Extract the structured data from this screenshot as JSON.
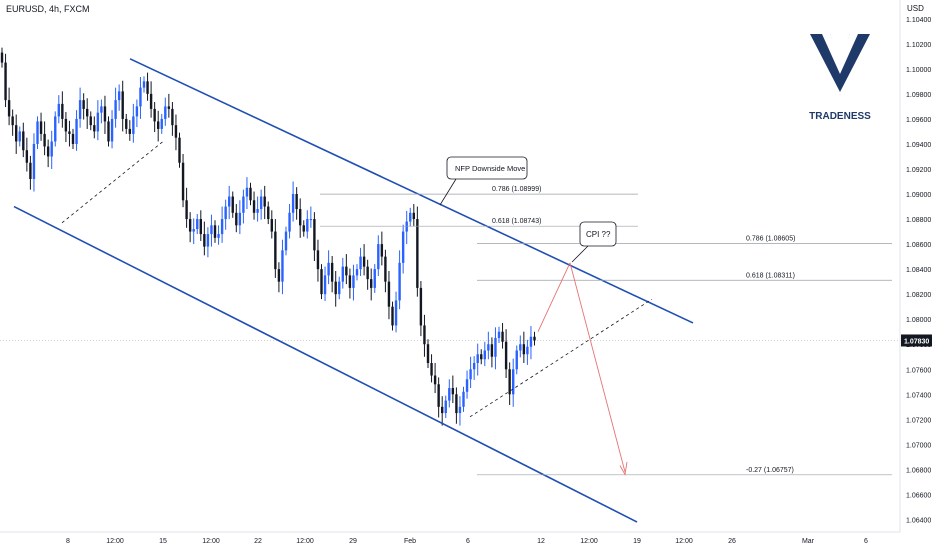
{
  "title": "EURUSD, 4h, FXCM",
  "currency": "USD",
  "brand": {
    "name": "TRADENESS",
    "color": "#1f3a68"
  },
  "colors": {
    "up": "#2962ff",
    "down": "#131722",
    "channel": "#1f4fb4",
    "projection": "#e57373",
    "fib": "#9aa0a6"
  },
  "chart_data": {
    "type": "candlestick",
    "timeframe": "4h",
    "symbol": "EURUSD",
    "ylim": [
      1.063,
      1.1055
    ],
    "y_ticks": [
      "1.10400",
      "1.10200",
      "1.10000",
      "1.09800",
      "1.09600",
      "1.09400",
      "1.09200",
      "1.09000",
      "1.08800",
      "1.08600",
      "1.08400",
      "1.08200",
      "1.08000",
      "1.07800",
      "1.07600",
      "1.07400",
      "1.07200",
      "1.07000",
      "1.06800",
      "1.06600",
      "1.06400"
    ],
    "x_ticks": [
      "8",
      "12:00",
      "15",
      "12:00",
      "22",
      "12:00",
      "29",
      "Feb",
      "6",
      "12",
      "12:00",
      "19",
      "12:00",
      "26",
      "Mar",
      "6"
    ],
    "last_price": "1.07830",
    "closes": [
      1.1005,
      1.0975,
      1.0962,
      1.0955,
      1.0942,
      1.095,
      1.0935,
      1.0925,
      1.0912,
      1.094,
      1.0958,
      1.0948,
      1.0938,
      1.093,
      1.0942,
      1.0962,
      1.0972,
      1.096,
      1.095,
      1.0948,
      1.094,
      1.096,
      1.0975,
      1.0968,
      1.0962,
      1.0955,
      1.095,
      1.0965,
      1.097,
      1.0958,
      1.0942,
      1.096,
      1.0975,
      1.0982,
      1.096,
      1.0952,
      1.0948,
      1.0962,
      1.097,
      1.0985,
      1.099,
      1.098,
      1.0968,
      1.0958,
      1.0952,
      1.096,
      1.097,
      1.0968,
      1.0955,
      1.0945,
      1.0925,
      1.0895,
      1.088,
      1.087,
      1.0872,
      1.088,
      1.0868,
      1.0858,
      1.0868,
      1.0875,
      1.0865,
      1.0868,
      1.088,
      1.089,
      1.0898,
      1.0885,
      1.0875,
      1.0885,
      1.0898,
      1.0905,
      1.0895,
      1.0885,
      1.0888,
      1.0898,
      1.089,
      1.088,
      1.087,
      1.084,
      1.083,
      1.0855,
      1.087,
      1.0885,
      1.09,
      1.0888,
      1.0875,
      1.087,
      1.088,
      1.088,
      1.0855,
      1.084,
      1.082,
      1.0835,
      1.0845,
      1.083,
      1.082,
      1.083,
      1.0842,
      1.0835,
      1.0825,
      1.0835,
      1.084,
      1.085,
      1.0842,
      1.0832,
      1.0825,
      1.084,
      1.086,
      1.085,
      1.083,
      1.081,
      1.0795,
      1.0815,
      1.0845,
      1.087,
      1.0878,
      1.0885,
      1.088,
      1.0825,
      1.0795,
      1.078,
      1.0765,
      1.0755,
      1.0748,
      1.073,
      1.0725,
      1.0735,
      1.0745,
      1.074,
      1.0725,
      1.073,
      1.0742,
      1.0752,
      1.076,
      1.0765,
      1.0772,
      1.0768,
      1.0775,
      1.078,
      1.077,
      1.0785,
      1.079,
      1.0782,
      1.076,
      1.074,
      1.076,
      1.0775,
      1.078,
      1.0772,
      1.0778,
      1.0786,
      1.0783
    ],
    "channel": {
      "upper": {
        "from": [
          "start",
          1.1008
        ],
        "to": [
          "end",
          1.0797
        ]
      },
      "lower": {
        "from": [
          "start",
          1.089
        ],
        "to": [
          "end",
          1.0638
        ]
      }
    },
    "fib_levels": [
      {
        "label": "0.786 (1.08999)",
        "value": 1.08999
      },
      {
        "label": "0.618 (1.08743)",
        "value": 1.08743
      },
      {
        "label": "0.786 (1.08605)",
        "value": 1.08605
      },
      {
        "label": "0.618 (1.08311)",
        "value": 1.08311
      },
      {
        "label": "-0.27 (1.06757)",
        "value": 1.06757
      }
    ],
    "annotations": [
      {
        "text": "NFP Downside Move"
      },
      {
        "text": "CPI ??"
      }
    ]
  }
}
